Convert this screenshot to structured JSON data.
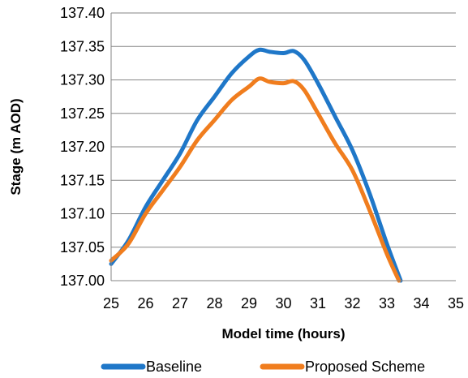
{
  "chart_data": {
    "type": "line",
    "xlabel": "Model time (hours)",
    "ylabel": "Stage (m AOD)",
    "xlim": [
      25,
      35
    ],
    "ylim": [
      137.0,
      137.4
    ],
    "x_ticks": [
      25,
      26,
      27,
      28,
      29,
      30,
      31,
      32,
      33,
      34,
      35
    ],
    "y_ticks": [
      137.0,
      137.05,
      137.1,
      137.15,
      137.2,
      137.25,
      137.3,
      137.35,
      137.4
    ],
    "x_tick_labels": [
      "25",
      "26",
      "27",
      "28",
      "29",
      "30",
      "31",
      "32",
      "33",
      "34",
      "35"
    ],
    "y_tick_labels": [
      "137.00",
      "137.05",
      "137.10",
      "137.15",
      "137.20",
      "137.25",
      "137.30",
      "137.35",
      "137.40"
    ],
    "grid": "horizontal",
    "legend_position": "bottom",
    "series": [
      {
        "name": "Baseline",
        "color": "#1f77c8",
        "x": [
          25.0,
          25.5,
          26.0,
          26.5,
          27.0,
          27.5,
          28.0,
          28.5,
          29.0,
          29.3,
          29.6,
          30.0,
          30.3,
          30.6,
          31.0,
          31.5,
          32.0,
          32.5,
          33.0,
          33.4
        ],
        "y": [
          137.025,
          137.06,
          137.11,
          137.15,
          137.19,
          137.24,
          137.275,
          137.31,
          137.335,
          137.345,
          137.342,
          137.34,
          137.343,
          137.33,
          137.295,
          137.245,
          137.195,
          137.13,
          137.055,
          137.0
        ]
      },
      {
        "name": "Proposed Scheme",
        "color": "#f07d1e",
        "x": [
          25.0,
          25.5,
          26.0,
          26.5,
          27.0,
          27.5,
          28.0,
          28.5,
          29.0,
          29.3,
          29.6,
          30.0,
          30.3,
          30.6,
          31.0,
          31.5,
          32.0,
          32.5,
          33.0,
          33.35
        ],
        "y": [
          137.03,
          137.055,
          137.1,
          137.135,
          137.17,
          137.21,
          137.24,
          137.27,
          137.29,
          137.302,
          137.297,
          137.295,
          137.298,
          137.285,
          137.25,
          137.205,
          137.165,
          137.105,
          137.04,
          137.0
        ]
      }
    ]
  }
}
